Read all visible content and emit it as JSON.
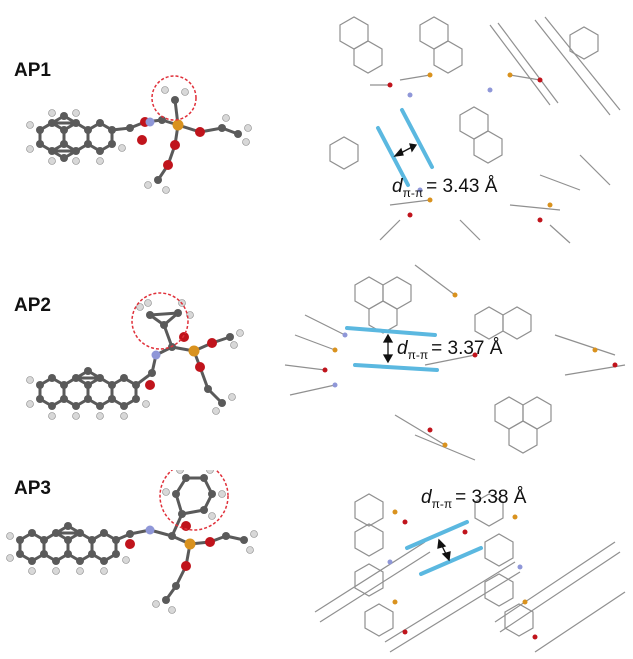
{
  "rows": [
    {
      "label": "AP1",
      "distance": {
        "symbol": "d",
        "subscript": "π-π",
        "text": "= 3.43 Å"
      }
    },
    {
      "label": "AP2",
      "distance": {
        "symbol": "d",
        "subscript": "π-π",
        "text": "= 3.37 Å"
      }
    },
    {
      "label": "AP3",
      "distance": {
        "symbol": "d",
        "subscript": "π-π",
        "text": "= 3.38 Å"
      }
    }
  ],
  "colors": {
    "carbon": "#5a5a5a",
    "hydrogen": "#d8d8d8",
    "oxygen": "#c0141c",
    "nitrogen": "#8f97d8",
    "phosphorus": "#d9921e",
    "highlight_circle": "#e0303a",
    "stacking_bar": "#5bb8e0",
    "packing_line": "#909090"
  }
}
